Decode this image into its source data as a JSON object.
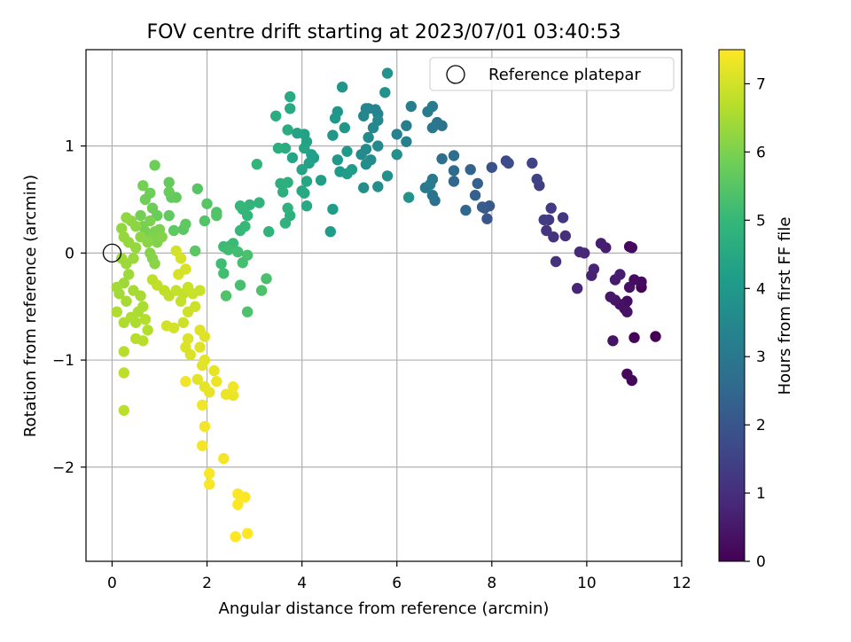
{
  "chart_data": {
    "type": "scatter",
    "title": "FOV centre drift starting at 2023/07/01 03:40:53",
    "xlabel": "Angular distance from reference (arcmin)",
    "ylabel": "Rotation from reference (arcmin)",
    "xlim": [
      -0.55,
      12
    ],
    "ylim": [
      -2.88,
      1.9
    ],
    "x_ticks": [
      0,
      2,
      4,
      6,
      8,
      10,
      12
    ],
    "x_tick_labels": [
      "0",
      "2",
      "4",
      "6",
      "8",
      "10",
      "12"
    ],
    "y_ticks": [
      -2,
      -1,
      0,
      1
    ],
    "y_tick_labels": [
      "−2",
      "−1",
      "0",
      "1"
    ],
    "grid": true,
    "legend": {
      "position": "top-right",
      "entries": [
        "Reference platepar"
      ]
    },
    "reference_point": {
      "x": 0,
      "y": 0,
      "label": "Reference platepar"
    },
    "colorbar": {
      "label": "Hours from first FF file",
      "min": 0,
      "max": 7.5,
      "ticks": [
        0,
        1,
        2,
        3,
        4,
        5,
        6,
        7
      ],
      "tick_labels": [
        "0",
        "1",
        "2",
        "3",
        "4",
        "5",
        "6",
        "7"
      ],
      "colormap": "viridis"
    },
    "colors": {
      "viridis": [
        "#440154",
        "#482878",
        "#3e4989",
        "#31688e",
        "#26828e",
        "#1f9e89",
        "#35b779",
        "#6ece58",
        "#b5de2b",
        "#fde725"
      ]
    },
    "points": [
      [
        11.45,
        -0.78,
        0.0
      ],
      [
        11.15,
        -0.32,
        0.05
      ],
      [
        11.0,
        -0.79,
        0.1
      ],
      [
        10.95,
        -1.19,
        0.12
      ],
      [
        10.85,
        -1.13,
        0.15
      ],
      [
        10.9,
        0.06,
        0.15
      ],
      [
        10.95,
        0.05,
        0.2
      ],
      [
        11.15,
        -0.27,
        0.2
      ],
      [
        11.0,
        -0.25,
        0.25
      ],
      [
        10.85,
        -0.45,
        0.3
      ],
      [
        10.8,
        -0.52,
        0.3
      ],
      [
        10.9,
        -0.32,
        0.35
      ],
      [
        10.7,
        -0.48,
        0.35
      ],
      [
        10.85,
        -0.55,
        0.4
      ],
      [
        10.55,
        -0.82,
        0.4
      ],
      [
        10.6,
        -0.44,
        0.45
      ],
      [
        10.5,
        -0.41,
        0.5
      ],
      [
        10.6,
        -0.25,
        0.55
      ],
      [
        10.7,
        -0.2,
        0.6
      ],
      [
        10.4,
        0.05,
        0.6
      ],
      [
        10.3,
        0.09,
        0.65
      ],
      [
        10.1,
        -0.21,
        0.7
      ],
      [
        10.15,
        -0.15,
        0.75
      ],
      [
        9.8,
        -0.33,
        0.8
      ],
      [
        9.95,
        0.0,
        0.85
      ],
      [
        9.85,
        0.01,
        0.9
      ],
      [
        9.55,
        0.16,
        1.0
      ],
      [
        9.35,
        -0.08,
        1.05
      ],
      [
        9.3,
        0.15,
        1.1
      ],
      [
        9.15,
        0.21,
        1.15
      ],
      [
        9.5,
        0.33,
        1.2
      ],
      [
        9.2,
        0.31,
        1.25
      ],
      [
        9.25,
        0.42,
        1.3
      ],
      [
        9.1,
        0.31,
        1.35
      ],
      [
        9.0,
        0.63,
        1.4
      ],
      [
        8.95,
        0.69,
        1.5
      ],
      [
        8.85,
        0.84,
        1.55
      ],
      [
        8.3,
        0.86,
        1.7
      ],
      [
        8.35,
        0.84,
        1.75
      ],
      [
        8.0,
        0.8,
        1.9
      ],
      [
        7.9,
        0.32,
        2.0
      ],
      [
        7.85,
        0.42,
        2.1
      ],
      [
        7.95,
        0.44,
        2.1
      ],
      [
        7.8,
        0.43,
        2.2
      ],
      [
        7.65,
        0.54,
        2.3
      ],
      [
        7.7,
        0.65,
        2.3
      ],
      [
        7.55,
        0.78,
        2.4
      ],
      [
        7.45,
        0.4,
        2.5
      ],
      [
        7.2,
        0.67,
        2.5
      ],
      [
        7.2,
        0.77,
        2.6
      ],
      [
        7.2,
        0.91,
        2.65
      ],
      [
        6.95,
        0.88,
        2.7
      ],
      [
        6.8,
        0.49,
        2.8
      ],
      [
        6.75,
        0.54,
        2.85
      ],
      [
        6.95,
        1.19,
        2.85
      ],
      [
        6.85,
        1.22,
        2.9
      ],
      [
        6.75,
        1.17,
        3.0
      ],
      [
        6.75,
        0.69,
        3.0
      ],
      [
        6.6,
        0.61,
        3.05
      ],
      [
        6.7,
        0.64,
        3.1
      ],
      [
        6.75,
        1.37,
        3.1
      ],
      [
        6.65,
        1.32,
        3.15
      ],
      [
        6.3,
        1.37,
        3.2
      ],
      [
        6.2,
        1.19,
        3.25
      ],
      [
        6.2,
        1.04,
        3.3
      ],
      [
        6.0,
        1.11,
        3.3
      ],
      [
        5.6,
        1.3,
        3.35
      ],
      [
        5.4,
        1.35,
        3.4
      ],
      [
        5.55,
        1.34,
        3.4
      ],
      [
        5.3,
        1.28,
        3.45
      ],
      [
        5.35,
        1.35,
        3.45
      ],
      [
        5.6,
        1.24,
        3.5
      ],
      [
        5.5,
        1.17,
        3.5
      ],
      [
        5.4,
        1.08,
        3.55
      ],
      [
        5.6,
        1.0,
        3.55
      ],
      [
        5.35,
        0.97,
        3.6
      ],
      [
        5.25,
        0.92,
        3.6
      ],
      [
        5.45,
        0.87,
        3.65
      ],
      [
        5.35,
        0.83,
        3.65
      ],
      [
        5.3,
        0.61,
        3.7
      ],
      [
        5.6,
        0.62,
        3.7
      ],
      [
        5.8,
        0.72,
        3.75
      ],
      [
        6.0,
        0.92,
        3.75
      ],
      [
        5.75,
        1.5,
        3.8
      ],
      [
        5.8,
        1.68,
        3.8
      ],
      [
        6.25,
        0.52,
        3.85
      ],
      [
        4.85,
        1.55,
        3.9
      ],
      [
        4.75,
        1.32,
        3.9
      ],
      [
        4.9,
        1.17,
        3.95
      ],
      [
        4.65,
        1.1,
        3.95
      ],
      [
        4.7,
        1.26,
        4.0
      ],
      [
        4.75,
        0.87,
        4.0
      ],
      [
        4.95,
        0.95,
        4.05
      ],
      [
        4.8,
        0.76,
        4.05
      ],
      [
        5.05,
        0.78,
        4.1
      ],
      [
        4.95,
        0.74,
        4.1
      ],
      [
        4.65,
        0.41,
        4.15
      ],
      [
        4.6,
        0.2,
        4.15
      ],
      [
        4.4,
        0.68,
        4.2
      ],
      [
        4.25,
        0.89,
        4.2
      ],
      [
        4.15,
        0.84,
        4.25
      ],
      [
        4.2,
        0.92,
        4.25
      ],
      [
        4.05,
        1.11,
        4.3
      ],
      [
        4.1,
        1.04,
        4.3
      ],
      [
        3.9,
        1.12,
        4.35
      ],
      [
        4.05,
        0.98,
        4.35
      ],
      [
        3.8,
        0.89,
        4.4
      ],
      [
        4.0,
        0.78,
        4.4
      ],
      [
        4.1,
        0.67,
        4.45
      ],
      [
        4.0,
        0.58,
        4.45
      ],
      [
        4.05,
        0.56,
        4.5
      ],
      [
        4.1,
        0.44,
        4.5
      ],
      [
        3.75,
        1.46,
        4.55
      ],
      [
        3.75,
        1.35,
        4.55
      ],
      [
        3.7,
        1.15,
        4.6
      ],
      [
        3.65,
        0.98,
        4.6
      ],
      [
        3.5,
        0.98,
        4.65
      ],
      [
        3.45,
        1.28,
        4.65
      ],
      [
        3.55,
        0.65,
        4.7
      ],
      [
        3.6,
        0.57,
        4.7
      ],
      [
        3.7,
        0.66,
        4.75
      ],
      [
        3.75,
        0.35,
        4.75
      ],
      [
        3.65,
        0.28,
        4.8
      ],
      [
        3.7,
        0.42,
        4.8
      ],
      [
        3.3,
        0.2,
        4.85
      ],
      [
        3.1,
        0.47,
        4.85
      ],
      [
        3.05,
        0.83,
        4.9
      ],
      [
        2.9,
        0.45,
        4.9
      ],
      [
        2.85,
        0.35,
        4.95
      ],
      [
        2.75,
        0.41,
        4.95
      ],
      [
        2.7,
        0.44,
        5.0
      ],
      [
        2.7,
        0.21,
        5.0
      ],
      [
        2.8,
        0.25,
        5.05
      ],
      [
        2.5,
        0.07,
        5.05
      ],
      [
        2.55,
        0.09,
        5.1
      ],
      [
        2.35,
        0.06,
        5.1
      ],
      [
        2.45,
        0.03,
        5.15
      ],
      [
        2.3,
        -0.1,
        5.15
      ],
      [
        2.35,
        -0.19,
        5.2
      ],
      [
        2.65,
        0.01,
        5.2
      ],
      [
        2.75,
        -0.09,
        5.25
      ],
      [
        2.7,
        -0.3,
        5.25
      ],
      [
        2.85,
        -0.02,
        5.3
      ],
      [
        3.25,
        -0.24,
        5.3
      ],
      [
        3.15,
        -0.35,
        5.35
      ],
      [
        2.85,
        -0.55,
        5.35
      ],
      [
        2.4,
        -0.4,
        5.4
      ],
      [
        2.2,
        0.38,
        5.4
      ],
      [
        2.2,
        0.35,
        5.45
      ],
      [
        1.95,
        0.3,
        5.45
      ],
      [
        2.0,
        0.46,
        5.5
      ],
      [
        1.8,
        0.6,
        5.5
      ],
      [
        1.75,
        0.02,
        5.55
      ],
      [
        1.5,
        0.22,
        5.55
      ],
      [
        1.55,
        0.27,
        5.6
      ],
      [
        1.3,
        0.21,
        5.6
      ],
      [
        1.2,
        0.35,
        5.65
      ],
      [
        1.25,
        0.52,
        5.65
      ],
      [
        1.35,
        0.52,
        5.7
      ],
      [
        1.2,
        0.66,
        5.7
      ],
      [
        1.2,
        0.57,
        5.75
      ],
      [
        0.95,
        0.35,
        5.75
      ],
      [
        0.85,
        0.42,
        5.8
      ],
      [
        0.9,
        0.82,
        5.8
      ],
      [
        0.8,
        0.56,
        5.85
      ],
      [
        0.7,
        0.5,
        5.85
      ],
      [
        0.65,
        0.63,
        5.9
      ],
      [
        0.6,
        0.35,
        5.9
      ],
      [
        0.65,
        0.25,
        5.95
      ],
      [
        0.7,
        0.2,
        5.95
      ],
      [
        0.8,
        0.3,
        6.0
      ],
      [
        0.9,
        0.2,
        6.0
      ],
      [
        1.0,
        0.22,
        6.0
      ],
      [
        0.85,
        0.15,
        6.05
      ],
      [
        0.95,
        0.1,
        6.05
      ],
      [
        1.05,
        0.15,
        6.1
      ],
      [
        0.8,
        0.0,
        6.1
      ],
      [
        0.85,
        -0.05,
        6.1
      ],
      [
        0.9,
        -0.1,
        6.15
      ],
      [
        0.75,
        0.1,
        6.15
      ],
      [
        0.6,
        0.15,
        6.2
      ],
      [
        0.5,
        0.25,
        6.2
      ],
      [
        0.4,
        0.3,
        6.2
      ],
      [
        0.3,
        0.33,
        6.25
      ],
      [
        0.2,
        0.23,
        6.25
      ],
      [
        0.25,
        0.15,
        6.3
      ],
      [
        0.35,
        0.1,
        6.3
      ],
      [
        0.5,
        0.05,
        6.3
      ],
      [
        0.45,
        -0.05,
        6.35
      ],
      [
        0.3,
        -0.1,
        6.35
      ],
      [
        0.2,
        -0.05,
        6.4
      ],
      [
        0.35,
        -0.2,
        6.4
      ],
      [
        0.25,
        -0.28,
        6.4
      ],
      [
        0.1,
        -0.32,
        6.45
      ],
      [
        0.15,
        -0.38,
        6.45
      ],
      [
        0.3,
        -0.45,
        6.5
      ],
      [
        0.45,
        -0.35,
        6.5
      ],
      [
        0.6,
        -0.4,
        6.5
      ],
      [
        0.65,
        -0.5,
        6.55
      ],
      [
        0.55,
        -0.55,
        6.55
      ],
      [
        0.5,
        -0.65,
        6.55
      ],
      [
        0.4,
        -0.6,
        6.6
      ],
      [
        0.25,
        -0.65,
        6.6
      ],
      [
        0.1,
        -0.55,
        6.6
      ],
      [
        0.7,
        -0.62,
        6.65
      ],
      [
        0.75,
        -0.72,
        6.65
      ],
      [
        0.65,
        -0.82,
        6.7
      ],
      [
        0.5,
        -0.8,
        6.7
      ],
      [
        0.25,
        -0.92,
        6.7
      ],
      [
        0.25,
        -1.12,
        6.75
      ],
      [
        0.25,
        -1.47,
        6.75
      ],
      [
        0.85,
        -0.25,
        6.75
      ],
      [
        0.95,
        -0.3,
        6.8
      ],
      [
        1.1,
        -0.35,
        6.8
      ],
      [
        1.2,
        -0.4,
        6.8
      ],
      [
        1.35,
        -0.35,
        6.85
      ],
      [
        1.45,
        -0.45,
        6.85
      ],
      [
        1.5,
        -0.38,
        6.85
      ],
      [
        1.6,
        -0.32,
        6.9
      ],
      [
        1.7,
        -0.38,
        6.9
      ],
      [
        1.85,
        -0.35,
        6.9
      ],
      [
        1.75,
        -0.5,
        6.95
      ],
      [
        1.6,
        -0.55,
        6.95
      ],
      [
        1.5,
        -0.65,
        6.95
      ],
      [
        1.3,
        -0.7,
        7.0
      ],
      [
        1.15,
        -0.68,
        7.0
      ],
      [
        1.35,
        0.02,
        7.0
      ],
      [
        1.45,
        -0.05,
        7.05
      ],
      [
        1.55,
        -0.15,
        7.05
      ],
      [
        1.4,
        -0.2,
        7.05
      ],
      [
        1.6,
        -0.8,
        7.1
      ],
      [
        1.55,
        -0.88,
        7.1
      ],
      [
        1.65,
        -0.95,
        7.1
      ],
      [
        1.85,
        -0.72,
        7.15
      ],
      [
        1.95,
        -0.78,
        7.15
      ],
      [
        1.85,
        -0.88,
        7.15
      ],
      [
        1.9,
        -1.05,
        7.2
      ],
      [
        1.95,
        -1.0,
        7.2
      ],
      [
        1.8,
        -1.18,
        7.2
      ],
      [
        1.95,
        -1.25,
        7.25
      ],
      [
        2.05,
        -1.3,
        7.25
      ],
      [
        2.15,
        -1.1,
        7.25
      ],
      [
        2.2,
        -1.2,
        7.3
      ],
      [
        2.4,
        -1.32,
        7.3
      ],
      [
        2.55,
        -1.33,
        7.3
      ],
      [
        2.55,
        -1.25,
        7.35
      ],
      [
        1.55,
        -1.2,
        7.35
      ],
      [
        1.9,
        -1.42,
        7.35
      ],
      [
        1.95,
        -1.62,
        7.4
      ],
      [
        1.9,
        -1.8,
        7.4
      ],
      [
        2.35,
        -1.92,
        7.4
      ],
      [
        2.05,
        -2.06,
        7.45
      ],
      [
        2.05,
        -2.16,
        7.45
      ],
      [
        2.65,
        -2.25,
        7.45
      ],
      [
        2.8,
        -2.28,
        7.5
      ],
      [
        2.65,
        -2.35,
        7.5
      ],
      [
        2.85,
        -2.62,
        7.5
      ],
      [
        2.6,
        -2.65,
        7.5
      ]
    ]
  }
}
